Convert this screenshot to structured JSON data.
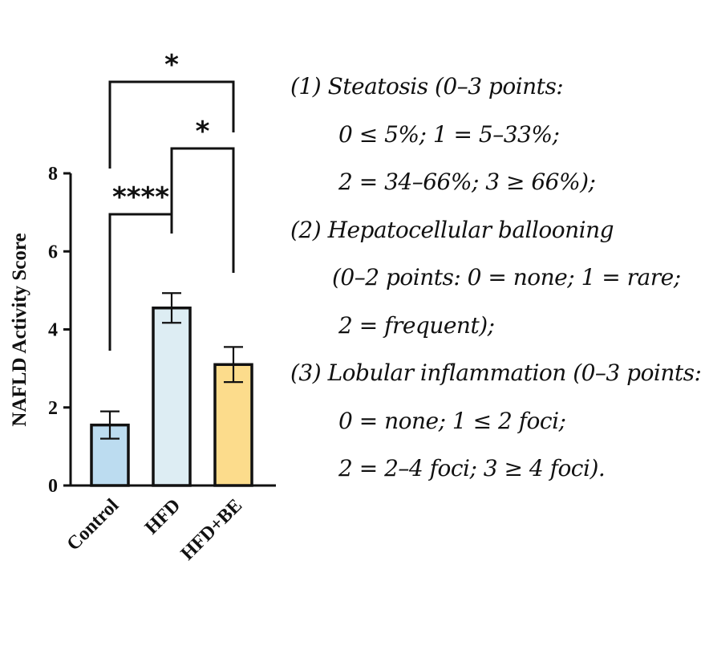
{
  "chart_data": {
    "type": "bar",
    "categories": [
      "Control",
      "HFD",
      "HFD+BE"
    ],
    "values": [
      1.55,
      4.55,
      3.1
    ],
    "errors": [
      0.35,
      0.38,
      0.45
    ],
    "colors": [
      "#bcdcf0",
      "#ddedf3",
      "#fcdc8c"
    ],
    "ylabel": "NAFLD Activity Score",
    "ylim": [
      0,
      8
    ],
    "yticks": [
      "0",
      "2",
      "4",
      "6",
      "8"
    ],
    "grid": false,
    "significance": [
      {
        "from": "Control",
        "to": "HFD",
        "label": "****"
      },
      {
        "from": "HFD",
        "to": "HFD+BE",
        "label": "*"
      },
      {
        "from": "Control",
        "to": "HFD+BE",
        "label": "*"
      }
    ]
  },
  "notes": {
    "lines": [
      "(1) Steatosis (0–3 points:",
      "0 ≤ 5%; 1 = 5–33%;",
      "2 = 34–66%; 3 ≥ 66%);",
      "(2) Hepatocellular ballooning",
      "(0–2 points: 0 = none; 1 = rare;",
      "2 = frequent);",
      "(3) Lobular inflammation (0–3 points:",
      "0 = none; 1 ≤ 2 foci;",
      "2 = 2–4 foci; 3 ≥ 4 foci)."
    ]
  }
}
